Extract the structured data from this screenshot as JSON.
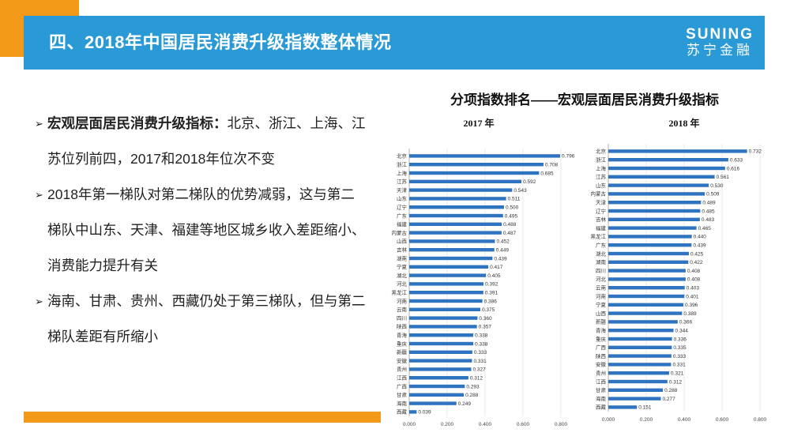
{
  "header": {
    "title": "四、2018年中国居民消费升级指数整体情况"
  },
  "logo": {
    "en": "SUNING",
    "cn": "苏宁金融"
  },
  "bullets": [
    {
      "lead": "宏观层面居民消费升级指标：",
      "text": "北京、浙江、上海、江苏位列前四，2017和2018年位次不变"
    },
    {
      "lead": "",
      "text": "2018年第一梯队对第二梯队的优势减弱，这与第二梯队中山东、天津、福建等地区城乡收入差距缩小、消费能力提升有关"
    },
    {
      "lead": "",
      "text": "海南、甘肃、贵州、西藏仍处于第三梯队，但与第二梯队差距有所缩小"
    }
  ],
  "chart_title": "分项指数排名——宏观层面居民消费升级指标",
  "chart_data": [
    {
      "type": "bar",
      "orientation": "horizontal",
      "title": "2017 年",
      "xlim": [
        0,
        0.8
      ],
      "ticks": [
        "0.000",
        "0.200",
        "0.400",
        "0.600",
        "0.800"
      ],
      "color": "#2f74c0",
      "categories": [
        "北京",
        "浙江",
        "上海",
        "江苏",
        "天津",
        "山东",
        "辽宁",
        "广东",
        "福建",
        "内蒙古",
        "山西",
        "吉林",
        "湖南",
        "宁夏",
        "湖北",
        "河北",
        "黑龙江",
        "河南",
        "云南",
        "四川",
        "陕西",
        "青海",
        "重庆",
        "新疆",
        "安徽",
        "贵州",
        "江西",
        "广西",
        "甘肃",
        "海南",
        "西藏"
      ],
      "values": [
        0.796,
        0.708,
        0.685,
        0.592,
        0.543,
        0.511,
        0.5,
        0.495,
        0.488,
        0.487,
        0.452,
        0.449,
        0.439,
        0.417,
        0.405,
        0.392,
        0.391,
        0.386,
        0.375,
        0.36,
        0.357,
        0.338,
        0.338,
        0.333,
        0.331,
        0.327,
        0.312,
        0.293,
        0.288,
        0.249,
        0.039
      ],
      "labels": [
        "0.796",
        "0.708",
        "0.685",
        "0.592",
        "0.543",
        "0.511",
        "0.500",
        "0.495",
        "0.488",
        "0.487",
        "0.452",
        "0.449",
        "0.439",
        "0.417",
        "0.405",
        "0.392",
        "0.391",
        "0.386",
        "0.375",
        "0.360",
        "0.357",
        "0.338",
        "0.338",
        "0.333",
        "0.331",
        "0.327",
        "0.312",
        "0.293",
        "0.288",
        "0.249",
        "0.039"
      ]
    },
    {
      "type": "bar",
      "orientation": "horizontal",
      "title": "2018 年",
      "xlim": [
        0,
        0.8
      ],
      "ticks": [
        "0.000",
        "0.200",
        "0.400",
        "0.600",
        "0.800"
      ],
      "color": "#2f74c0",
      "categories": [
        "北京",
        "浙江",
        "上海",
        "江苏",
        "山东",
        "内蒙古",
        "天津",
        "辽宁",
        "吉林",
        "福建",
        "黑龙江",
        "广东",
        "湖北",
        "湖南",
        "四川",
        "河北",
        "云南",
        "河南",
        "宁夏",
        "山西",
        "新疆",
        "青海",
        "重庆",
        "广西",
        "陕西",
        "安徽",
        "贵州",
        "江西",
        "甘肃",
        "海南",
        "西藏"
      ],
      "values": [
        0.732,
        0.633,
        0.616,
        0.561,
        0.53,
        0.509,
        0.489,
        0.485,
        0.483,
        0.465,
        0.44,
        0.439,
        0.425,
        0.422,
        0.408,
        0.408,
        0.403,
        0.401,
        0.396,
        0.389,
        0.366,
        0.344,
        0.336,
        0.335,
        0.333,
        0.331,
        0.321,
        0.312,
        0.288,
        0.277,
        0.151
      ],
      "labels": [
        "0.732",
        "0.633",
        "0.616",
        "0.561",
        "0.530",
        "0.509",
        "0.489",
        "0.485",
        "0.483",
        "0.465",
        "0.440",
        "0.439",
        "0.425",
        "0.422",
        "0.408",
        "0.408",
        "0.403",
        "0.401",
        "0.396",
        "0.389",
        "0.366",
        "0.344",
        "0.336",
        "0.335",
        "0.333",
        "0.331",
        "0.321",
        "0.312",
        "0.288",
        "0.277",
        "0.151"
      ]
    }
  ]
}
